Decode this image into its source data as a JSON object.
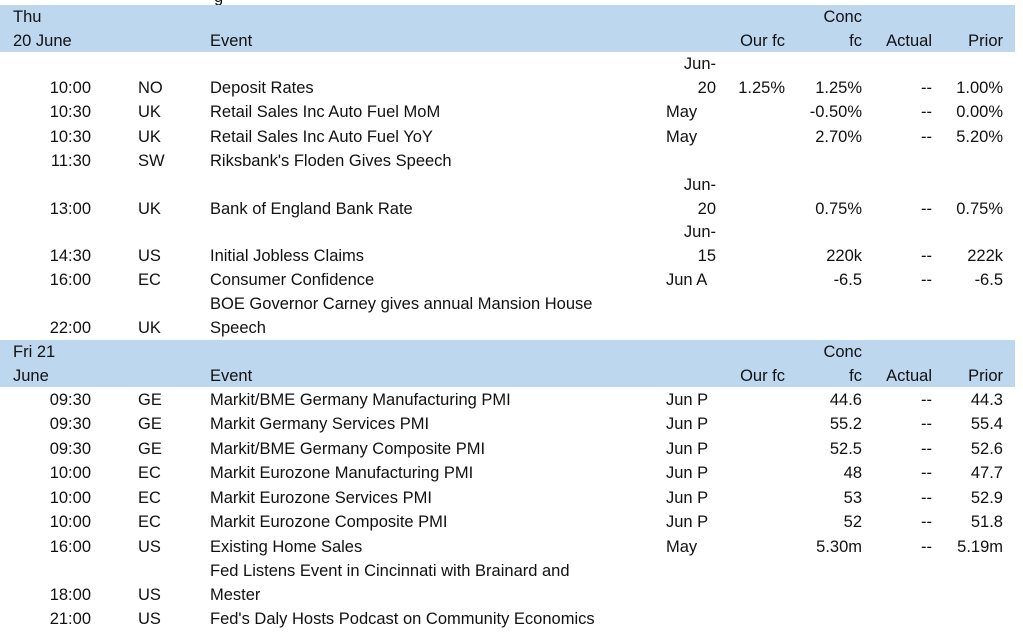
{
  "top_cut_text": "g",
  "sections": [
    {
      "day_line1": "Thu",
      "day_line2": "20 June",
      "headers": {
        "event": "Event",
        "our_fc": "Our fc",
        "conc_line1": "Conc",
        "conc_line2": "fc",
        "actual": "Actual",
        "prior": "Prior"
      },
      "rows": [
        {
          "time": "10:00",
          "country": "NO",
          "event": "Deposit Rates",
          "period_line1": "Jun-",
          "period_line2": "20",
          "our_fc": "1.25%",
          "conc": "1.25%",
          "actual": "--",
          "prior": "1.00%"
        },
        {
          "time": "10:30",
          "country": "UK",
          "event": "Retail Sales Inc Auto Fuel MoM",
          "period": "May",
          "our_fc": "",
          "conc": "-0.50%",
          "actual": "--",
          "prior": "0.00%"
        },
        {
          "time": "10:30",
          "country": "UK",
          "event": "Retail Sales Inc Auto Fuel YoY",
          "period": "May",
          "our_fc": "",
          "conc": "2.70%",
          "actual": "--",
          "prior": "5.20%"
        },
        {
          "time": "11:30",
          "country": "SW",
          "event": "Riksbank's Floden Gives Speech",
          "period": "",
          "our_fc": "",
          "conc": "",
          "actual": "",
          "prior": ""
        },
        {
          "time": "13:00",
          "country": "UK",
          "event": "Bank of England Bank Rate",
          "period_line1": "Jun-",
          "period_line2": "20",
          "our_fc": "",
          "conc": "0.75%",
          "actual": "--",
          "prior": "0.75%"
        },
        {
          "time": "14:30",
          "country": "US",
          "event": "Initial Jobless Claims",
          "period_line1": "Jun-",
          "period_line2": "15",
          "our_fc": "",
          "conc": "220k",
          "actual": "--",
          "prior": "222k"
        },
        {
          "time": "16:00",
          "country": "EC",
          "event": "Consumer Confidence",
          "period": "Jun A",
          "our_fc": "",
          "conc": "-6.5",
          "actual": "--",
          "prior": "-6.5"
        },
        {
          "time": "22:00",
          "country": "UK",
          "event_line1": "BOE Governor Carney gives annual Mansion House",
          "event_line2": "Speech",
          "period": "",
          "our_fc": "",
          "conc": "",
          "actual": "",
          "prior": ""
        }
      ]
    },
    {
      "day_line1": "Fri 21",
      "day_line2": "June",
      "headers": {
        "event": "Event",
        "our_fc": "Our fc",
        "conc_line1": "Conc",
        "conc_line2": "fc",
        "actual": "Actual",
        "prior": "Prior"
      },
      "rows": [
        {
          "time": "09:30",
          "country": "GE",
          "event": "Markit/BME Germany Manufacturing PMI",
          "period": "Jun P",
          "our_fc": "",
          "conc": "44.6",
          "actual": "--",
          "prior": "44.3"
        },
        {
          "time": "09:30",
          "country": "GE",
          "event": "Markit Germany Services PMI",
          "period": "Jun P",
          "our_fc": "",
          "conc": "55.2",
          "actual": "--",
          "prior": "55.4"
        },
        {
          "time": "09:30",
          "country": "GE",
          "event": "Markit/BME Germany Composite PMI",
          "period": "Jun P",
          "our_fc": "",
          "conc": "52.5",
          "actual": "--",
          "prior": "52.6"
        },
        {
          "time": "10:00",
          "country": "EC",
          "event": "Markit Eurozone Manufacturing PMI",
          "period": "Jun P",
          "our_fc": "",
          "conc": "48",
          "actual": "--",
          "prior": "47.7"
        },
        {
          "time": "10:00",
          "country": "EC",
          "event": "Markit Eurozone Services PMI",
          "period": "Jun P",
          "our_fc": "",
          "conc": "53",
          "actual": "--",
          "prior": "52.9"
        },
        {
          "time": "10:00",
          "country": "EC",
          "event": "Markit Eurozone Composite PMI",
          "period": "Jun P",
          "our_fc": "",
          "conc": "52",
          "actual": "--",
          "prior": "51.8"
        },
        {
          "time": "16:00",
          "country": "US",
          "event": "Existing Home Sales",
          "period": "May",
          "our_fc": "",
          "conc": "5.30m",
          "actual": "--",
          "prior": "5.19m"
        },
        {
          "time": "18:00",
          "country": "US",
          "event_line1": "Fed Listens Event in Cincinnati with Brainard and",
          "event_line2": "Mester",
          "period": "",
          "our_fc": "",
          "conc": "",
          "actual": "",
          "prior": ""
        },
        {
          "time": "21:00",
          "country": "US",
          "event": "Fed's Daly Hosts Podcast on Community Economics",
          "period": "",
          "our_fc": "",
          "conc": "",
          "actual": "",
          "prior": ""
        }
      ]
    }
  ]
}
